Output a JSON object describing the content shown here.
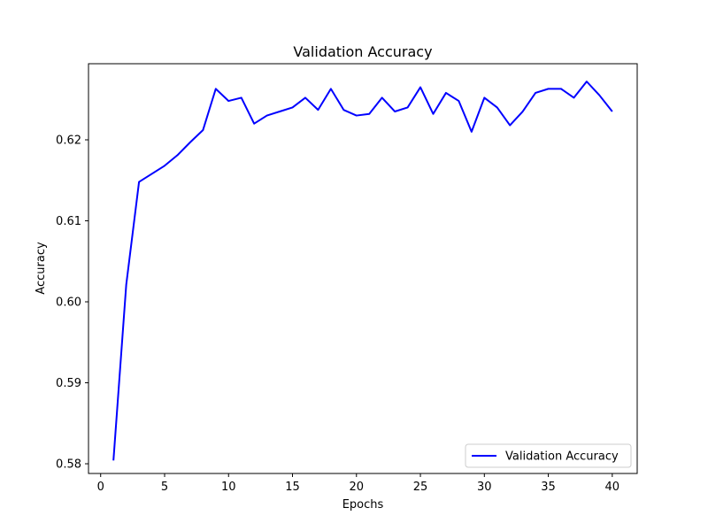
{
  "chart_data": {
    "type": "line",
    "title": "Validation Accuracy",
    "xlabel": "Epochs",
    "ylabel": "Accuracy",
    "xlim": [
      -0.95,
      41.95
    ],
    "ylim": [
      0.5788,
      0.6294
    ],
    "x_ticks": [
      0,
      5,
      10,
      15,
      20,
      25,
      30,
      35,
      40
    ],
    "y_ticks": [
      0.58,
      0.59,
      0.6,
      0.61,
      0.62
    ],
    "y_tick_labels": [
      "0.58",
      "0.59",
      "0.60",
      "0.61",
      "0.62"
    ],
    "grid": false,
    "legend": {
      "position": "bottom-right"
    },
    "series": [
      {
        "name": "Validation Accuracy",
        "color": "#0000ff",
        "x": [
          1,
          2,
          3,
          4,
          5,
          6,
          7,
          8,
          9,
          10,
          11,
          12,
          13,
          14,
          15,
          16,
          17,
          18,
          19,
          20,
          21,
          22,
          23,
          24,
          25,
          26,
          27,
          28,
          29,
          30,
          31,
          32,
          33,
          34,
          35,
          36,
          37,
          38,
          39,
          40
        ],
        "y": [
          0.5804,
          0.6021,
          0.6148,
          0.6158,
          0.6168,
          0.6181,
          0.6197,
          0.6212,
          0.6263,
          0.6248,
          0.6252,
          0.622,
          0.623,
          0.6235,
          0.624,
          0.6252,
          0.6237,
          0.6263,
          0.6237,
          0.623,
          0.6232,
          0.6252,
          0.6235,
          0.624,
          0.6265,
          0.6232,
          0.6258,
          0.6248,
          0.621,
          0.6252,
          0.624,
          0.6218,
          0.6235,
          0.6258,
          0.6263,
          0.6263,
          0.6252,
          0.6272,
          0.6255,
          0.6235
        ]
      }
    ]
  }
}
